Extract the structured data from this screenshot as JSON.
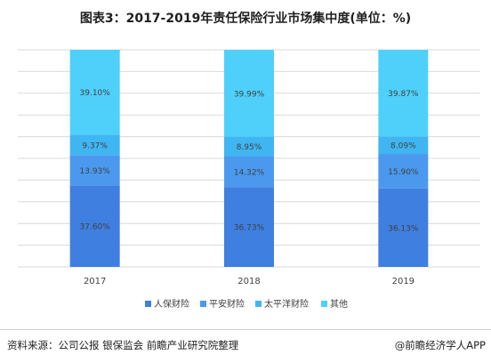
{
  "title": "图表3：2017-2019年责任保险行业市场集中度(单位：%)",
  "source": "资料来源：公司公报 银保监会 前瞻产业研究院整理",
  "brand": "@前瞻经济学人APP",
  "chart_data": {
    "type": "bar",
    "stacked": true,
    "categories": [
      "2017",
      "2018",
      "2019"
    ],
    "series": [
      {
        "name": "人保财险",
        "values": [
          37.6,
          36.73,
          36.13
        ],
        "labels": [
          "37.60%",
          "36.73%",
          "36.13%"
        ],
        "color": "#3f7fdf"
      },
      {
        "name": "平安财险",
        "values": [
          13.93,
          14.32,
          15.9
        ],
        "labels": [
          "13.93%",
          "14.32%",
          "15.90%"
        ],
        "color": "#4a99ee"
      },
      {
        "name": "太平洋财险",
        "values": [
          9.37,
          8.95,
          8.09
        ],
        "labels": [
          "9.37%",
          "8.95%",
          "8.09%"
        ],
        "color": "#3fb6f2"
      },
      {
        "name": "其他",
        "values": [
          39.1,
          39.99,
          39.87
        ],
        "labels": [
          "39.10%",
          "39.99%",
          "39.87%"
        ],
        "color": "#4fd0fa"
      }
    ],
    "ylim": [
      0,
      100
    ],
    "grid": true,
    "legend_position": "bottom"
  }
}
